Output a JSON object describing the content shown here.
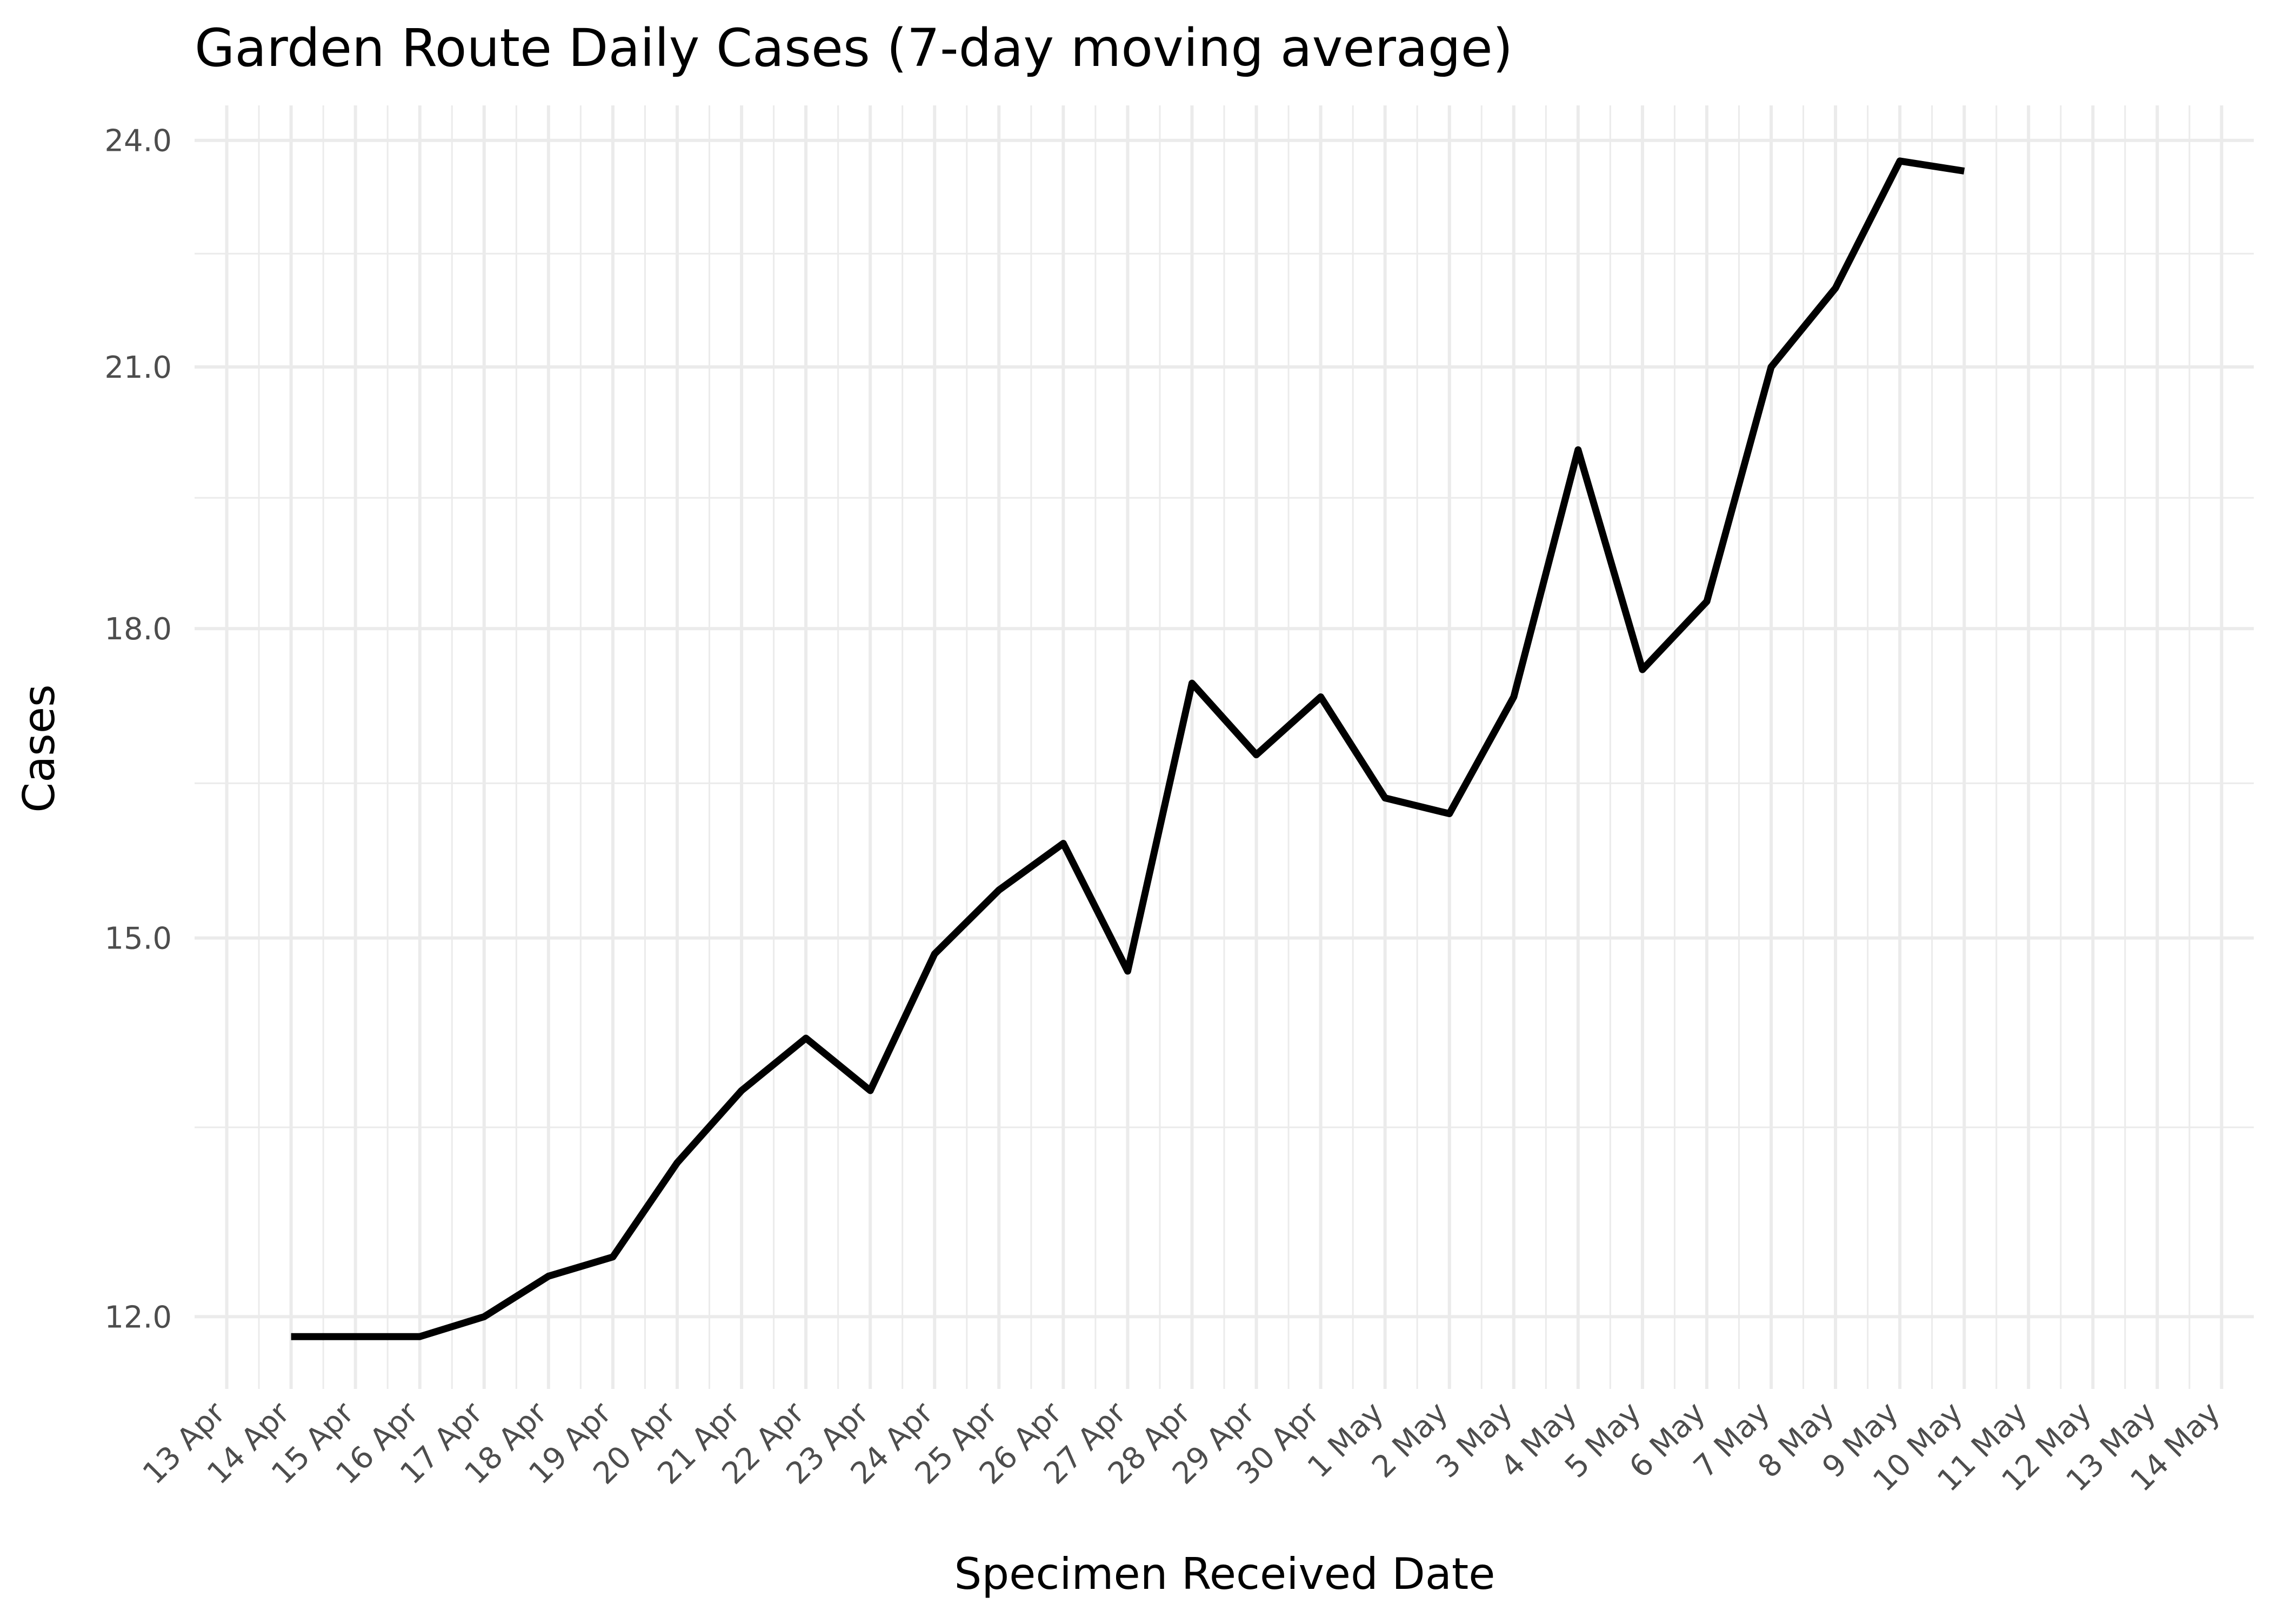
{
  "chart_data": {
    "type": "line",
    "title": "Garden Route Daily Cases (7-day moving average)",
    "xlabel": "Specimen Received Date",
    "ylabel": "Cases",
    "y_scale": "log",
    "grid": true,
    "legend": "none",
    "line_color": "#000000",
    "x_tick_labels": [
      "13 Apr",
      "14 Apr",
      "15 Apr",
      "16 Apr",
      "17 Apr",
      "18 Apr",
      "19 Apr",
      "20 Apr",
      "21 Apr",
      "22 Apr",
      "23 Apr",
      "24 Apr",
      "25 Apr",
      "26 Apr",
      "27 Apr",
      "28 Apr",
      "29 Apr",
      "30 Apr",
      "1 May",
      "2 May",
      "3 May",
      "4 May",
      "5 May",
      "6 May",
      "7 May",
      "8 May",
      "9 May",
      "10 May",
      "11 May",
      "12 May",
      "13 May",
      "14 May"
    ],
    "y_ticks": [
      12,
      15,
      18,
      21,
      24
    ],
    "y_tick_labels": [
      "12.0",
      "15.0",
      "18.0",
      "21.0",
      "24.0"
    ],
    "ylim": [
      11.5,
      24.5
    ],
    "x": [
      "14 Apr",
      "15 Apr",
      "16 Apr",
      "17 Apr",
      "18 Apr",
      "19 Apr",
      "20 Apr",
      "21 Apr",
      "22 Apr",
      "23 Apr",
      "24 Apr",
      "25 Apr",
      "26 Apr",
      "27 Apr",
      "28 Apr",
      "29 Apr",
      "30 Apr",
      "1 May",
      "2 May",
      "3 May",
      "4 May",
      "5 May",
      "6 May",
      "7 May",
      "8 May",
      "9 May",
      "10 May"
    ],
    "series": [
      {
        "values": [
          11.86,
          11.86,
          11.86,
          12.0,
          12.29,
          12.43,
          13.14,
          13.71,
          14.14,
          13.71,
          14.86,
          15.43,
          15.86,
          14.71,
          17.43,
          16.71,
          17.29,
          16.29,
          16.14,
          17.29,
          20.0,
          17.57,
          18.29,
          21.0,
          22.0,
          23.71,
          23.57
        ]
      }
    ]
  }
}
